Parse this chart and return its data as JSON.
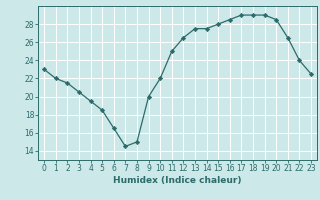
{
  "x": [
    0,
    1,
    2,
    3,
    4,
    5,
    6,
    7,
    8,
    9,
    10,
    11,
    12,
    13,
    14,
    15,
    16,
    17,
    18,
    19,
    20,
    21,
    22,
    23
  ],
  "y": [
    23,
    22,
    21.5,
    20.5,
    19.5,
    18.5,
    16.5,
    14.5,
    15.0,
    20.0,
    22.0,
    25.0,
    26.5,
    27.5,
    27.5,
    28.0,
    28.5,
    29.0,
    29.0,
    29.0,
    28.5,
    26.5,
    24.0,
    22.5
  ],
  "xlabel": "Humidex (Indice chaleur)",
  "xlim": [
    -0.5,
    23.5
  ],
  "ylim": [
    13,
    30
  ],
  "yticks": [
    14,
    16,
    18,
    20,
    22,
    24,
    26,
    28
  ],
  "xticks": [
    0,
    1,
    2,
    3,
    4,
    5,
    6,
    7,
    8,
    9,
    10,
    11,
    12,
    13,
    14,
    15,
    16,
    17,
    18,
    19,
    20,
    21,
    22,
    23
  ],
  "line_color": "#2d6b6b",
  "bg_color": "#cce8e8",
  "grid_color": "#ffffff",
  "tick_fontsize": 5.5,
  "label_fontsize": 6.5
}
